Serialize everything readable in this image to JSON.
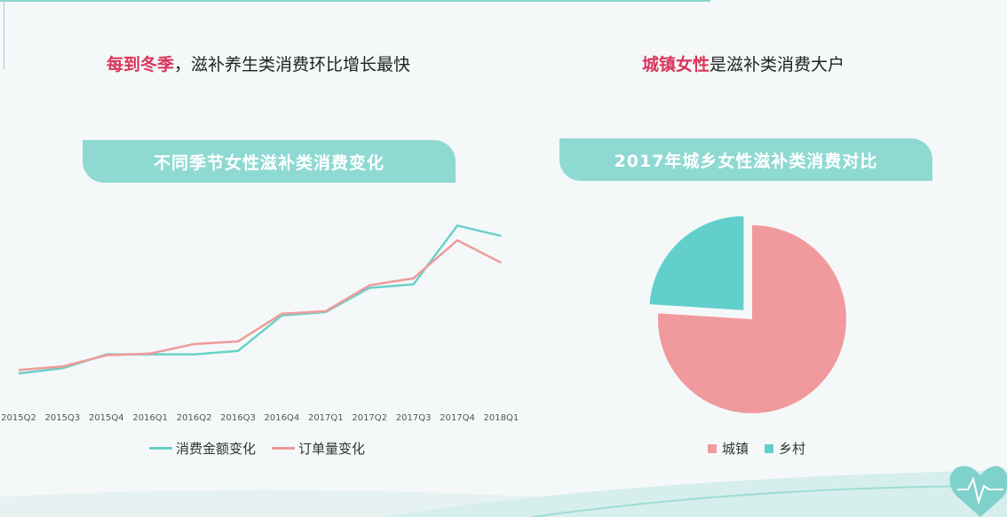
{
  "headline_left": {
    "highlight": "每到冬季",
    "rest": "，滋补养生类消费环比增长最快"
  },
  "headline_right": {
    "highlight": "城镇女性",
    "rest": "是滋补类消费大户"
  },
  "colors": {
    "teal": "#6ecfca",
    "pink": "#ef9a9a",
    "highlight": "#d9345a",
    "banner": "#8fd9d3"
  },
  "chart_data": [
    {
      "type": "line",
      "title": "不同季节女性滋补类消费变化",
      "categories": [
        "2015Q2",
        "2015Q3",
        "2015Q4",
        "2016Q1",
        "2016Q2",
        "2016Q3",
        "2016Q4",
        "2017Q1",
        "2017Q2",
        "2017Q3",
        "2017Q4",
        "2018Q1"
      ],
      "series": [
        {
          "name": "消费金额变化",
          "color": "#6ecfca",
          "values": [
            4,
            10,
            26,
            26,
            26,
            30,
            71,
            75,
            103,
            107,
            175,
            163
          ]
        },
        {
          "name": "订单量变化",
          "color": "#ef9a9a",
          "values": [
            8,
            12,
            25,
            27,
            38,
            41,
            73,
            76,
            106,
            114,
            158,
            132
          ]
        }
      ],
      "ylim": [
        0,
        200
      ],
      "grid": false,
      "legend": "bottom"
    },
    {
      "type": "pie",
      "title": "2017年城乡女性滋补类消费对比",
      "slices": [
        {
          "label": "城镇",
          "value": 76,
          "color": "#f09a9e"
        },
        {
          "label": "乡村",
          "value": 24,
          "color": "#62cfcc"
        }
      ],
      "legend": "bottom"
    }
  ]
}
